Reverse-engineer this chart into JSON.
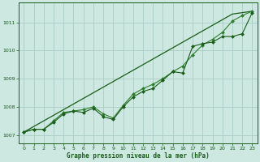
{
  "background_color": "#cce8e0",
  "plot_bg_color": "#cce8e0",
  "grid_color": "#aaccc4",
  "line_color_dark": "#1a5c1a",
  "line_color_mid": "#2e7d2e",
  "xlabel": "Graphe pression niveau de la mer (hPa)",
  "xlim": [
    -0.5,
    23.5
  ],
  "ylim": [
    1006.7,
    1011.7
  ],
  "yticks": [
    1007,
    1008,
    1009,
    1010,
    1011
  ],
  "xticks": [
    0,
    1,
    2,
    3,
    4,
    5,
    6,
    7,
    8,
    9,
    10,
    11,
    12,
    13,
    14,
    15,
    16,
    17,
    18,
    19,
    20,
    21,
    22,
    23
  ],
  "line_straight": [
    1007.1,
    1007.5,
    1007.9,
    1008.3,
    1008.7,
    1009.1,
    1009.5,
    1009.9,
    1010.3,
    1010.7,
    1011.1,
    1011.3,
    1011.35,
    1011.4
  ],
  "line_straight_x": [
    0,
    2,
    4,
    6,
    8,
    10,
    12,
    14,
    16,
    18,
    20,
    21,
    22,
    23
  ],
  "line1_y": [
    1007.1,
    1007.2,
    1007.2,
    1007.5,
    1007.8,
    1007.85,
    1007.9,
    1008.0,
    1007.75,
    1007.6,
    1008.05,
    1008.45,
    1008.65,
    1008.8,
    1009.0,
    1009.25,
    1009.45,
    1009.85,
    1010.2,
    1010.4,
    1010.65,
    1011.05,
    1011.25,
    1011.4
  ],
  "line2_y": [
    1007.1,
    1007.2,
    1007.2,
    1007.45,
    1007.75,
    1007.85,
    1007.8,
    1007.95,
    1007.65,
    1007.55,
    1008.0,
    1008.35,
    1008.55,
    1008.65,
    1008.95,
    1009.25,
    1009.2,
    1010.15,
    1010.25,
    1010.3,
    1010.5,
    1010.5,
    1010.6,
    1011.35
  ],
  "marker": "D",
  "markersize": 2.0,
  "linewidth": 0.8,
  "tick_fontsize": 4.5,
  "xlabel_fontsize": 5.5
}
